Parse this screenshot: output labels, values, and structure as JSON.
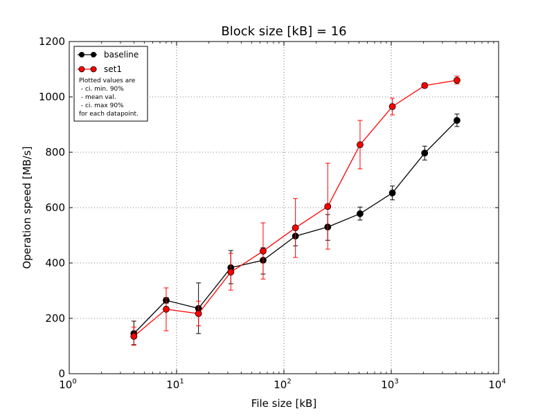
{
  "chart_data": {
    "type": "line",
    "title": "Block size [kB] = 16",
    "xlabel": "File size [kB]",
    "ylabel": "Operation speed [MB/s]",
    "x_scale": "log",
    "xlim": [
      1,
      10000
    ],
    "ylim": [
      0,
      1200
    ],
    "x_ticks": [
      {
        "value": 1,
        "base": "10",
        "exp": "0"
      },
      {
        "value": 10,
        "base": "10",
        "exp": "1"
      },
      {
        "value": 100,
        "base": "10",
        "exp": "2"
      },
      {
        "value": 1000,
        "base": "10",
        "exp": "3"
      },
      {
        "value": 10000,
        "base": "10",
        "exp": "4"
      }
    ],
    "y_ticks": [
      0,
      200,
      400,
      600,
      800,
      1000,
      1200
    ],
    "grid": true,
    "legend_position": "top-left",
    "legend_note": [
      "Plotted values are",
      " - ci. min. 90%",
      " - mean val.",
      " - ci. max 90%",
      "for each datapoint."
    ],
    "series": [
      {
        "name": "baseline",
        "color": "#000000",
        "points": [
          {
            "x": 4,
            "y": 145,
            "lo": 105,
            "hi": 190
          },
          {
            "x": 8,
            "y": 265,
            "lo": 255,
            "hi": 275
          },
          {
            "x": 16,
            "y": 236,
            "lo": 145,
            "hi": 328
          },
          {
            "x": 32,
            "y": 383,
            "lo": 325,
            "hi": 445
          },
          {
            "x": 64,
            "y": 410,
            "lo": 360,
            "hi": 455
          },
          {
            "x": 128,
            "y": 497,
            "lo": 462,
            "hi": 530
          },
          {
            "x": 256,
            "y": 530,
            "lo": 482,
            "hi": 575
          },
          {
            "x": 512,
            "y": 578,
            "lo": 555,
            "hi": 602
          },
          {
            "x": 1024,
            "y": 653,
            "lo": 628,
            "hi": 678
          },
          {
            "x": 2048,
            "y": 797,
            "lo": 772,
            "hi": 822
          },
          {
            "x": 4096,
            "y": 915,
            "lo": 893,
            "hi": 938
          }
        ]
      },
      {
        "name": "set1",
        "color": "#ff0000",
        "points": [
          {
            "x": 4,
            "y": 135,
            "lo": 103,
            "hi": 168
          },
          {
            "x": 8,
            "y": 233,
            "lo": 155,
            "hi": 310
          },
          {
            "x": 16,
            "y": 217,
            "lo": 173,
            "hi": 262
          },
          {
            "x": 32,
            "y": 367,
            "lo": 302,
            "hi": 435
          },
          {
            "x": 64,
            "y": 443,
            "lo": 342,
            "hi": 545
          },
          {
            "x": 128,
            "y": 527,
            "lo": 420,
            "hi": 633
          },
          {
            "x": 256,
            "y": 604,
            "lo": 450,
            "hi": 760
          },
          {
            "x": 512,
            "y": 827,
            "lo": 740,
            "hi": 915
          },
          {
            "x": 1024,
            "y": 965,
            "lo": 935,
            "hi": 995
          },
          {
            "x": 2048,
            "y": 1041,
            "lo": 1033,
            "hi": 1050
          },
          {
            "x": 4096,
            "y": 1060,
            "lo": 1047,
            "hi": 1075
          }
        ]
      }
    ]
  }
}
